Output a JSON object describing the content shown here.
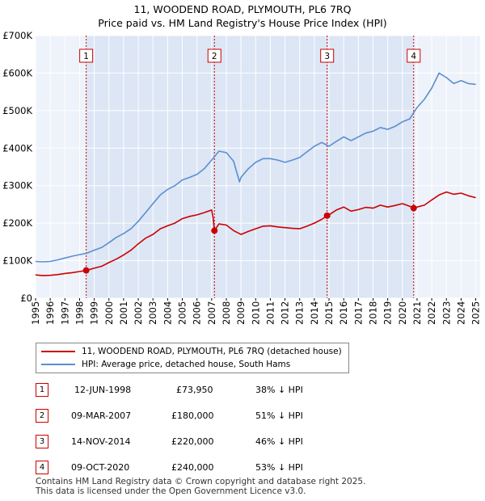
{
  "chart_data": {
    "type": "line",
    "title": "11, WOODEND ROAD, PLYMOUTH, PL6 7RQ",
    "subtitle": "Price paid vs. HM Land Registry's House Price Index (HPI)",
    "xlim": [
      1995,
      2025.3
    ],
    "ylim": [
      0,
      700000
    ],
    "yticks": [
      {
        "value": 0,
        "label": "£0"
      },
      {
        "value": 100000,
        "label": "£100K"
      },
      {
        "value": 200000,
        "label": "£200K"
      },
      {
        "value": 300000,
        "label": "£300K"
      },
      {
        "value": 400000,
        "label": "£400K"
      },
      {
        "value": 500000,
        "label": "£500K"
      },
      {
        "value": 600000,
        "label": "£600K"
      },
      {
        "value": 700000,
        "label": "£700K"
      }
    ],
    "xticks": [
      "1995",
      "1996",
      "1997",
      "1998",
      "1999",
      "2000",
      "2001",
      "2002",
      "2003",
      "2004",
      "2005",
      "2006",
      "2007",
      "2008",
      "2009",
      "2010",
      "2011",
      "2012",
      "2013",
      "2014",
      "2015",
      "2016",
      "2017",
      "2018",
      "2019",
      "2020",
      "2021",
      "2022",
      "2023",
      "2024",
      "2025"
    ],
    "grid": true,
    "shaded_region": {
      "from": 1998.45,
      "to": 2020.77,
      "color": "#dce6f5"
    },
    "series": [
      {
        "name": "11, WOODEND ROAD, PLYMOUTH, PL6 7RQ (detached house)",
        "color": "#cc0000",
        "x": [
          1995,
          1995.5,
          1996,
          1996.5,
          1997,
          1997.5,
          1998,
          1998.45,
          1999,
          1999.5,
          2000,
          2000.5,
          2001,
          2001.5,
          2002,
          2002.5,
          2003,
          2003.5,
          2004,
          2004.5,
          2005,
          2005.5,
          2006,
          2006.5,
          2007,
          2007.1,
          2007.19,
          2007.5,
          2008,
          2008.5,
          2009,
          2009.5,
          2010,
          2010.5,
          2011,
          2011.5,
          2012,
          2012.5,
          2013,
          2013.5,
          2014,
          2014.5,
          2014.87,
          2015,
          2015.5,
          2016,
          2016.5,
          2017,
          2017.5,
          2018,
          2018.5,
          2019,
          2019.5,
          2020,
          2020.5,
          2020.77,
          2021,
          2021.5,
          2022,
          2022.5,
          2023,
          2023.5,
          2024,
          2024.5,
          2025
        ],
        "y": [
          62000,
          60000,
          61000,
          63000,
          66000,
          68000,
          71000,
          73950,
          80000,
          85000,
          95000,
          104000,
          115000,
          128000,
          145000,
          160000,
          170000,
          185000,
          193000,
          200000,
          212000,
          218000,
          222000,
          228000,
          235000,
          215000,
          180000,
          198000,
          195000,
          180000,
          170000,
          178000,
          185000,
          192000,
          193000,
          190000,
          188000,
          186000,
          185000,
          192000,
          200000,
          210000,
          220000,
          222000,
          235000,
          243000,
          232000,
          236000,
          242000,
          240000,
          248000,
          243000,
          247000,
          252000,
          245000,
          240000,
          243000,
          248000,
          262000,
          275000,
          283000,
          277000,
          280000,
          273000,
          268000
        ]
      },
      {
        "name": "HPI: Average price, detached house, South Hams",
        "color": "#5b8fd0",
        "x": [
          1995,
          1995.5,
          1996,
          1996.5,
          1997,
          1997.5,
          1998,
          1998.5,
          1999,
          1999.5,
          2000,
          2000.5,
          2001,
          2001.5,
          2002,
          2002.5,
          2003,
          2003.5,
          2004,
          2004.5,
          2005,
          2005.5,
          2006,
          2006.5,
          2007,
          2007.5,
          2008,
          2008.5,
          2008.9,
          2009,
          2009.5,
          2010,
          2010.5,
          2011,
          2011.5,
          2012,
          2012.5,
          2013,
          2013.5,
          2014,
          2014.5,
          2015,
          2015.5,
          2016,
          2016.5,
          2017,
          2017.5,
          2018,
          2018.5,
          2019,
          2019.5,
          2020,
          2020.5,
          2021,
          2021.5,
          2022,
          2022.5,
          2023,
          2023.5,
          2024,
          2024.5,
          2025
        ],
        "y": [
          98000,
          97000,
          98000,
          102000,
          107000,
          112000,
          116000,
          120000,
          128000,
          135000,
          148000,
          162000,
          172000,
          185000,
          205000,
          228000,
          252000,
          275000,
          290000,
          300000,
          315000,
          322000,
          330000,
          345000,
          368000,
          392000,
          388000,
          365000,
          310000,
          322000,
          345000,
          362000,
          372000,
          372000,
          368000,
          362000,
          368000,
          375000,
          390000,
          405000,
          415000,
          405000,
          418000,
          430000,
          420000,
          430000,
          440000,
          445000,
          455000,
          450000,
          458000,
          470000,
          478000,
          508000,
          530000,
          560000,
          600000,
          588000,
          572000,
          580000,
          572000,
          570000
        ]
      }
    ],
    "sales": [
      {
        "label": "1",
        "x": 1998.45,
        "y": 73950
      },
      {
        "label": "2",
        "x": 2007.19,
        "y": 180000
      },
      {
        "label": "3",
        "x": 2014.87,
        "y": 220000
      },
      {
        "label": "4",
        "x": 2020.77,
        "y": 240000
      }
    ]
  },
  "legend": {
    "property": "11, WOODEND ROAD, PLYMOUTH, PL6 7RQ (detached house)",
    "hpi": "HPI: Average price, detached house, South Hams"
  },
  "sales_table": [
    {
      "num": "1",
      "date": "12-JUN-1998",
      "price": "£73,950",
      "hpi": "38% ↓ HPI"
    },
    {
      "num": "2",
      "date": "09-MAR-2007",
      "price": "£180,000",
      "hpi": "51% ↓ HPI"
    },
    {
      "num": "3",
      "date": "14-NOV-2014",
      "price": "£220,000",
      "hpi": "46% ↓ HPI"
    },
    {
      "num": "4",
      "date": "09-OCT-2020",
      "price": "£240,000",
      "hpi": "53% ↓ HPI"
    }
  ],
  "footer": {
    "line1": "Contains HM Land Registry data © Crown copyright and database right 2025.",
    "line2": "This data is licensed under the Open Government Licence v3.0."
  }
}
